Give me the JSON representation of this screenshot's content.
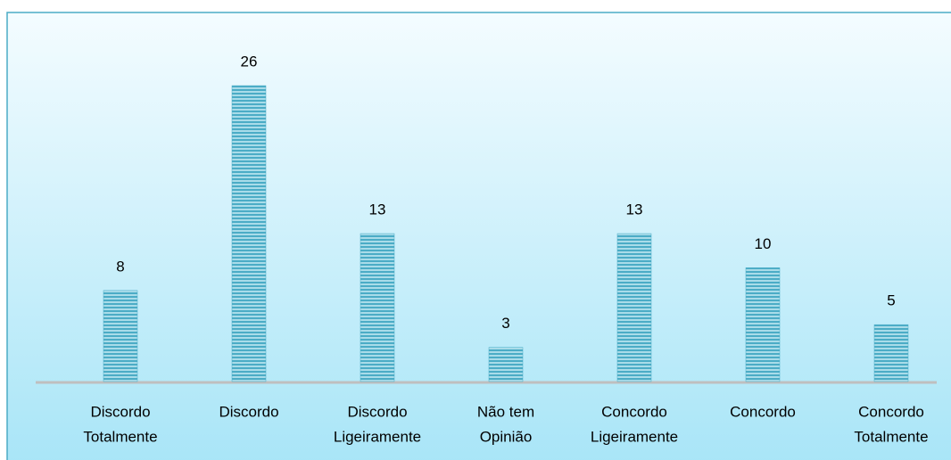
{
  "chart_data": {
    "type": "bar",
    "categories": [
      [
        "Discordo",
        "Totalmente"
      ],
      [
        "Discordo"
      ],
      [
        "Discordo",
        "Ligeiramente"
      ],
      [
        "Não tem",
        "Opinião"
      ],
      [
        "Concordo",
        "Ligeiramente"
      ],
      [
        "Concordo"
      ],
      [
        "Concordo",
        "Totalmente"
      ]
    ],
    "values": [
      8,
      26,
      13,
      3,
      13,
      10,
      5
    ],
    "color": "#4bacc6",
    "ylim": [
      0,
      30
    ]
  }
}
